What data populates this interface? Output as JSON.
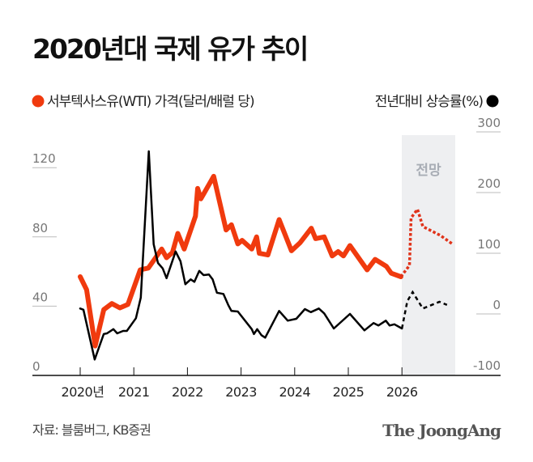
{
  "title": "2020년대 국제 유가 추이",
  "source": "자료: 블룸버그, KB증권",
  "logo": "The JoongAng",
  "colors": {
    "oil": "#f03a0e",
    "growth": "#000000",
    "forecast_bg": "#eeeff1"
  },
  "chart_data": {
    "type": "line",
    "title": "2020년대 국제 유가 추이",
    "forecast_label": "전망",
    "forecast_range": [
      2026,
      2027
    ],
    "x_ticks": [
      {
        "value": 2020,
        "label": "2020년"
      },
      {
        "value": 2021,
        "label": "2021"
      },
      {
        "value": 2022,
        "label": "2022"
      },
      {
        "value": 2023,
        "label": "2023"
      },
      {
        "value": 2024,
        "label": "2024"
      },
      {
        "value": 2025,
        "label": "2025"
      },
      {
        "value": 2026,
        "label": "2026"
      }
    ],
    "y_left": {
      "label": "서부텍사스유(WTI) 가격(달러/배럴 당)",
      "ticks": [
        "0",
        "40",
        "80",
        "120"
      ],
      "tick_values": [
        0,
        40,
        80,
        120
      ],
      "range": [
        0,
        125
      ]
    },
    "y_right": {
      "label": "전년대비 상승률(%)",
      "ticks": [
        "-100",
        "0",
        "100",
        "200",
        "300"
      ],
      "tick_values": [
        -100,
        0,
        100,
        200,
        300
      ],
      "range": [
        -100,
        300
      ]
    },
    "series": [
      {
        "name": "서부텍사스유(WTI) 가격(달러/배럴 당)",
        "axis": "left",
        "x": [
          2020.0,
          2020.12,
          2020.28,
          2020.44,
          2020.59,
          2020.74,
          2020.89,
          2021.12,
          2021.27,
          2021.52,
          2021.61,
          2021.72,
          2021.82,
          2021.94,
          2022.15,
          2022.19,
          2022.25,
          2022.49,
          2022.72,
          2022.82,
          2022.94,
          2023.02,
          2023.2,
          2023.29,
          2023.34,
          2023.5,
          2023.71,
          2023.94,
          2024.1,
          2024.31,
          2024.39,
          2024.55,
          2024.7,
          2024.81,
          2024.91,
          2025.03,
          2025.35,
          2025.5,
          2025.71,
          2025.8,
          2025.98
        ],
        "values": [
          57,
          49.5,
          17,
          38,
          41.5,
          39,
          41,
          61,
          62,
          73,
          68,
          71,
          82,
          73,
          92,
          108,
          102,
          115,
          84,
          87,
          76,
          78,
          73,
          80,
          70.5,
          69.6,
          90,
          72,
          76.6,
          85,
          79,
          80,
          69,
          71.5,
          69,
          75,
          61,
          67,
          63,
          59,
          57
        ],
        "forecast_x": [
          2025.98,
          2026.14,
          2026.17,
          2026.29,
          2026.39,
          2026.71,
          2026.94
        ],
        "forecast_values": [
          57,
          63.5,
          91,
          96,
          86,
          81,
          76
        ]
      },
      {
        "name": "전년대비 상승률(%)",
        "axis": "right",
        "x": [
          2020.0,
          2020.06,
          2020.27,
          2020.44,
          2020.5,
          2020.62,
          2020.69,
          2020.8,
          2020.87,
          2021.04,
          2021.13,
          2021.28,
          2021.37,
          2021.45,
          2021.54,
          2021.61,
          2021.78,
          2021.87,
          2021.96,
          2022.06,
          2022.13,
          2022.22,
          2022.3,
          2022.4,
          2022.47,
          2022.55,
          2022.67,
          2022.76,
          2022.82,
          2022.94,
          2023.2,
          2023.24,
          2023.3,
          2023.38,
          2023.45,
          2023.71,
          2023.87,
          2024.03,
          2024.19,
          2024.3,
          2024.45,
          2024.55,
          2024.73,
          2025.03,
          2025.3,
          2025.47,
          2025.56,
          2025.7,
          2025.77,
          2025.86,
          2026.0
        ],
        "values": [
          9,
          7,
          -75,
          -33,
          -32,
          -25,
          -32,
          -28,
          -28,
          -7,
          27,
          268,
          115,
          84,
          75,
          59,
          103,
          87,
          49,
          57,
          53,
          71,
          64,
          65,
          57,
          35,
          33,
          15,
          5,
          4,
          -25,
          -33,
          -25,
          -35,
          -39,
          5,
          -11,
          -8,
          8,
          3,
          9,
          1,
          -24,
          0,
          -27,
          -15,
          -19,
          -11,
          -19,
          -17,
          -24
        ],
        "forecast_x": [
          2026.0,
          2026.1,
          2026.2,
          2026.39,
          2026.7,
          2026.84
        ],
        "forecast_values": [
          -24,
          21,
          36,
          9,
          20,
          15
        ]
      }
    ]
  }
}
